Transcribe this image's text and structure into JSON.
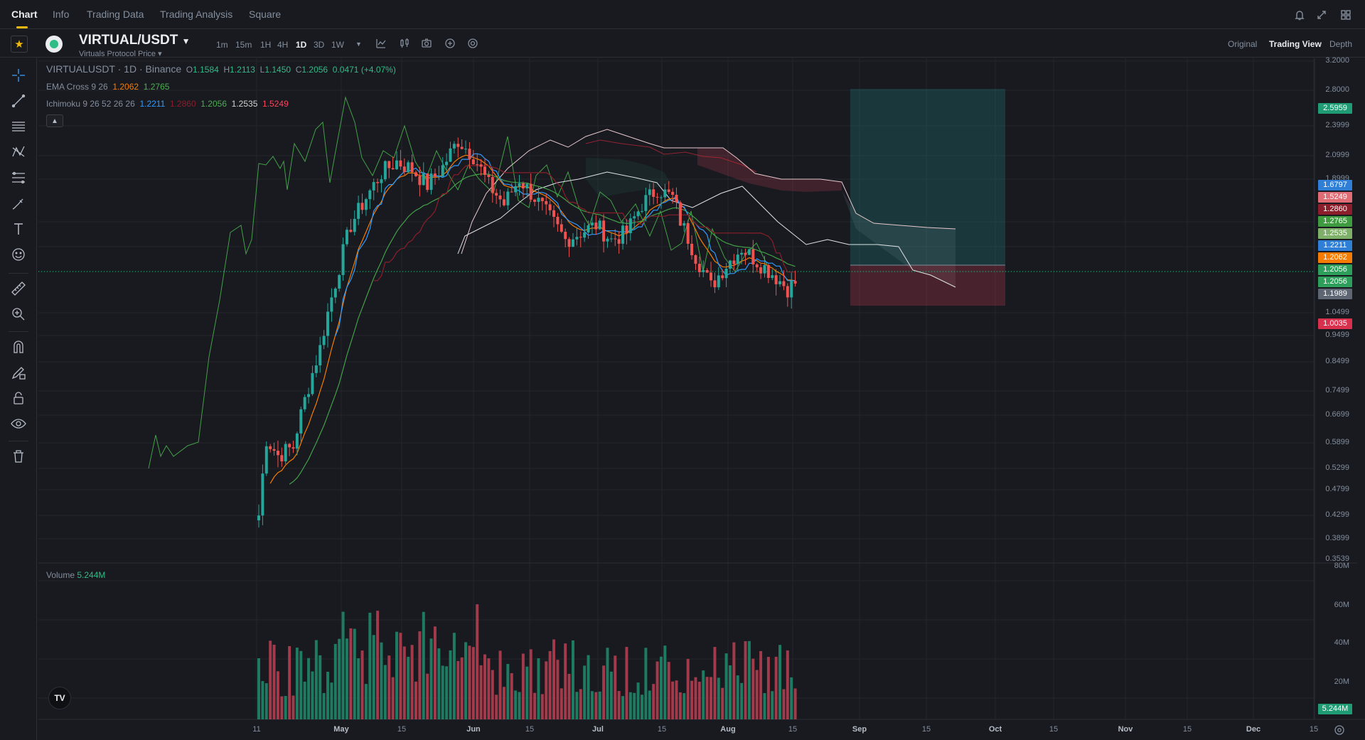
{
  "nav": {
    "tabs": [
      {
        "label": "Chart"
      },
      {
        "label": "Info"
      },
      {
        "label": "Trading Data"
      },
      {
        "label": "Trading Analysis"
      },
      {
        "label": "Square"
      }
    ],
    "icons": [
      "bell-icon",
      "expand-icon",
      "layout-icon"
    ]
  },
  "toolbar": {
    "pair": "VIRTUAL/USDT",
    "pair_sub": "Virtuals Protocol Price",
    "timeframes": [
      "1m",
      "15m",
      "1H",
      "4H",
      "1D",
      "3D",
      "1W"
    ],
    "active_timeframe": "1D",
    "views": [
      "Original",
      "Trading View",
      "Depth"
    ],
    "active_view": "Trading View"
  },
  "legend": {
    "symbol_line": "VIRTUALUSDT · 1D · Binance",
    "ohlc": {
      "o": "1.1584",
      "h": "1.2113",
      "l": "1.1450",
      "c": "1.2056",
      "chg": "0.0471 (+4.07%)"
    },
    "ema": {
      "label": "EMA Cross 9 26",
      "v1": "1.2062",
      "v2": "1.2765"
    },
    "ichimoku": {
      "label": "Ichimoku 9 26 52 26 26",
      "v1": "1.2211",
      "v2": "1.2860",
      "v3": "1.2056",
      "v4": "1.2535",
      "v5": "1.5249"
    },
    "volume": {
      "label": "Volume",
      "value": "5.244M"
    }
  },
  "price_axis": [
    "3.2000",
    "2.8000",
    "2.3999",
    "2.0999",
    "1.8999",
    "1.6797",
    "1.5249",
    "1.2860",
    "1.2765",
    "1.2535",
    "1.2211",
    "1.2062",
    "1.2056",
    "1.2056",
    "1.1989",
    "1.0499",
    "1.0035",
    "0.9499",
    "0.8499",
    "0.7499",
    "0.6699",
    "0.5899",
    "0.5299",
    "0.4799",
    "0.4299",
    "0.3899",
    "0.3539"
  ],
  "badges": [
    {
      "text": "2.5959",
      "color": "#1f9c74"
    },
    {
      "text": "1.6797",
      "color": "#2f7fd6"
    },
    {
      "text": "1.5249",
      "color": "#e06c75"
    },
    {
      "text": "1.2860",
      "color": "#8b1e2a"
    },
    {
      "text": "1.2765",
      "color": "#3f9b3f"
    },
    {
      "text": "1.2535",
      "color": "#7fb069"
    },
    {
      "text": "1.2211",
      "color": "#2f7fd6"
    },
    {
      "text": "1.2062",
      "color": "#f57c00"
    },
    {
      "text": "1.2056",
      "color": "#2e9e5b"
    },
    {
      "text": "1.2056",
      "color": "#2e9e5b"
    },
    {
      "text": "1.1989",
      "color": "#5e6673"
    },
    {
      "text": "1.0035",
      "color": "#d9304e"
    }
  ],
  "volume_axis": [
    "80M",
    "60M",
    "40M",
    "20M"
  ],
  "volume_badge": "5.244M",
  "time_axis": [
    "11",
    "May",
    "15",
    "Jun",
    "15",
    "Jul",
    "15",
    "Aug",
    "15",
    "Sep",
    "15",
    "Oct",
    "15",
    "Nov",
    "15",
    "Dec",
    "15"
  ],
  "colors": {
    "up": "#2ebd85",
    "down": "#f6465d",
    "bg": "#181a20",
    "grid": "#2b2f36"
  }
}
